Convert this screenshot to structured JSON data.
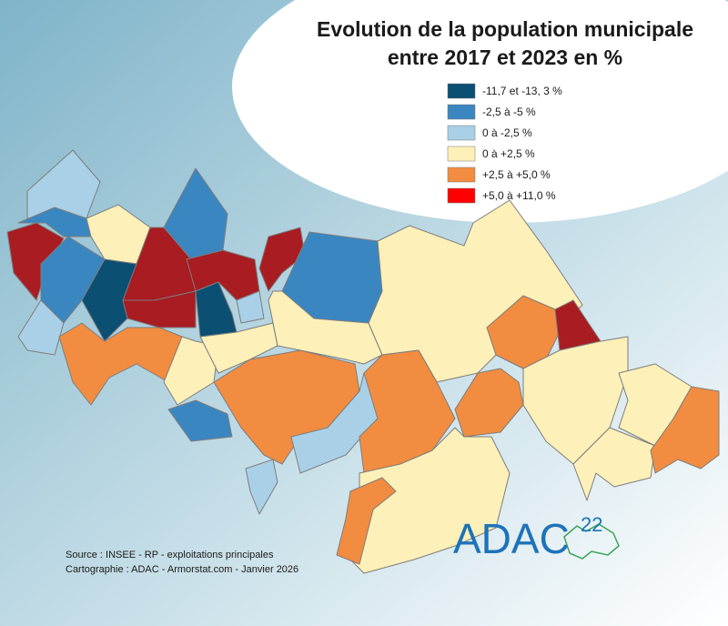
{
  "header": {
    "title_line1": "Evolution de la population municipale",
    "title_line2": "entre 2017 et 2023 en %"
  },
  "legend": [
    {
      "label": "-11,7 et -13, 3 %",
      "color": "#0b4f73"
    },
    {
      "label": "-2,5 à -5 %",
      "color": "#3a86c0"
    },
    {
      "label": "0 à -2,5 %",
      "color": "#a9d0e6"
    },
    {
      "label": "0 à +2,5 %",
      "color": "#fdf0b8"
    },
    {
      "label": "+2,5 à +5,0 %",
      "color": "#f28c40"
    },
    {
      "label": "+5,0 à +11,0 %",
      "color": "#ff0000"
    }
  ],
  "map_extra_colors": {
    "dark_red": "#a81c22"
  },
  "source": {
    "line1": "Source : INSEE - RP - exploitations principales",
    "line2": "Cartographie : ADAC - Armorstat.com - Janvier 2026"
  },
  "logo": {
    "name": "ADAC",
    "number": "22"
  }
}
